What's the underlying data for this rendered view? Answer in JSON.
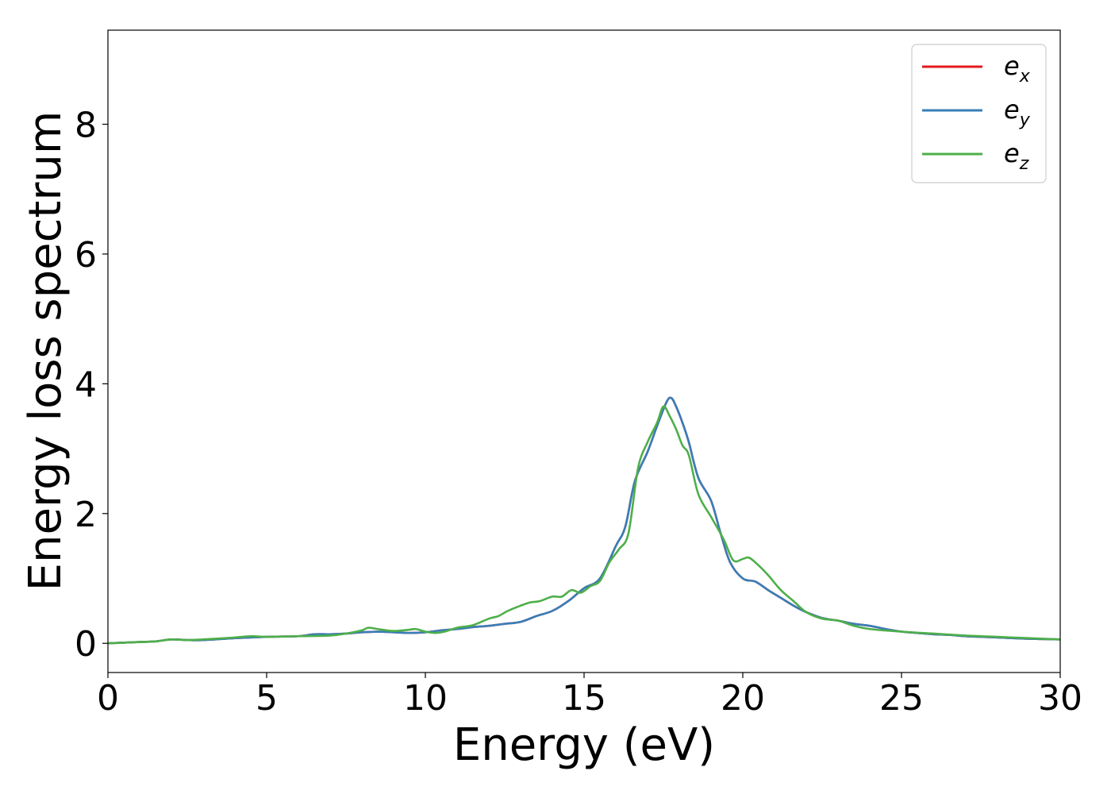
{
  "chart_data": {
    "type": "line",
    "title": "",
    "xlabel": "Energy (eV)",
    "ylabel": "Energy loss spectrum",
    "xlim": [
      0,
      30
    ],
    "ylim": [
      -0.45,
      9.45
    ],
    "xticks": [
      0,
      5,
      10,
      15,
      20,
      25,
      30
    ],
    "yticks": [
      0,
      2,
      4,
      6,
      8
    ],
    "grid": false,
    "legend_position": "top-right",
    "series": [
      {
        "name": "e",
        "subscript": "x",
        "color": "#e41a1c",
        "x": [
          0,
          1,
          1.5,
          2,
          2.5,
          3,
          4,
          5,
          6,
          6.5,
          7,
          7.5,
          8,
          8.5,
          9,
          9.5,
          10,
          10.5,
          11,
          11.5,
          12,
          12.5,
          13,
          13.5,
          14,
          14.5,
          15,
          15.5,
          16,
          16.3,
          16.6,
          17,
          17.3,
          17.6,
          17.75,
          17.9,
          18.1,
          18.3,
          18.6,
          19,
          19.3,
          19.6,
          20,
          20.4,
          20.8,
          21.2,
          21.6,
          22,
          22.5,
          23,
          23.5,
          24,
          24.5,
          25,
          25.5,
          26,
          26.5,
          27,
          28,
          29,
          30
        ],
        "y": [
          0,
          0.02,
          0.03,
          0.06,
          0.05,
          0.05,
          0.08,
          0.1,
          0.11,
          0.14,
          0.14,
          0.15,
          0.17,
          0.18,
          0.17,
          0.16,
          0.17,
          0.2,
          0.22,
          0.25,
          0.27,
          0.3,
          0.33,
          0.42,
          0.5,
          0.65,
          0.85,
          1.0,
          1.5,
          1.8,
          2.5,
          2.95,
          3.35,
          3.72,
          3.78,
          3.65,
          3.4,
          3.1,
          2.55,
          2.2,
          1.7,
          1.25,
          1.0,
          0.95,
          0.82,
          0.7,
          0.58,
          0.48,
          0.39,
          0.35,
          0.3,
          0.27,
          0.22,
          0.18,
          0.16,
          0.14,
          0.13,
          0.11,
          0.09,
          0.07,
          0.06
        ]
      },
      {
        "name": "e",
        "subscript": "y",
        "color": "#377eb8",
        "x": [
          0,
          1,
          1.5,
          2,
          2.5,
          3,
          4,
          5,
          6,
          6.5,
          7,
          7.5,
          8,
          8.5,
          9,
          9.5,
          10,
          10.5,
          11,
          11.5,
          12,
          12.5,
          13,
          13.5,
          14,
          14.5,
          15,
          15.5,
          16,
          16.3,
          16.6,
          17,
          17.3,
          17.6,
          17.75,
          17.9,
          18.1,
          18.3,
          18.6,
          19,
          19.3,
          19.6,
          20,
          20.4,
          20.8,
          21.2,
          21.6,
          22,
          22.5,
          23,
          23.5,
          24,
          24.5,
          25,
          25.5,
          26,
          26.5,
          27,
          28,
          29,
          30
        ],
        "y": [
          0,
          0.02,
          0.03,
          0.06,
          0.05,
          0.05,
          0.08,
          0.1,
          0.11,
          0.14,
          0.14,
          0.15,
          0.17,
          0.18,
          0.17,
          0.16,
          0.17,
          0.2,
          0.22,
          0.25,
          0.27,
          0.3,
          0.33,
          0.42,
          0.5,
          0.65,
          0.85,
          1.0,
          1.5,
          1.8,
          2.5,
          2.95,
          3.35,
          3.72,
          3.78,
          3.65,
          3.4,
          3.1,
          2.55,
          2.2,
          1.7,
          1.25,
          1.0,
          0.95,
          0.82,
          0.7,
          0.58,
          0.48,
          0.39,
          0.35,
          0.3,
          0.27,
          0.22,
          0.18,
          0.16,
          0.14,
          0.13,
          0.11,
          0.09,
          0.07,
          0.06
        ]
      },
      {
        "name": "e",
        "subscript": "z",
        "color": "#4daf4a",
        "x": [
          0,
          1,
          1.5,
          2,
          2.5,
          3,
          4,
          4.5,
          5,
          6,
          7,
          7.5,
          8,
          8.2,
          8.5,
          9,
          9.5,
          9.7,
          10,
          10.3,
          10.6,
          11,
          11.5,
          12,
          12.3,
          12.6,
          13,
          13.3,
          13.6,
          14,
          14.3,
          14.6,
          14.9,
          15.2,
          15.5,
          15.8,
          16.1,
          16.4,
          16.7,
          17,
          17.3,
          17.5,
          17.7,
          17.9,
          18.1,
          18.3,
          18.6,
          19,
          19.4,
          19.7,
          20,
          20.2,
          20.5,
          20.8,
          21.2,
          21.6,
          22,
          22.5,
          23,
          23.5,
          24,
          25,
          26,
          27,
          28,
          29,
          30
        ],
        "y": [
          0,
          0.02,
          0.03,
          0.06,
          0.05,
          0.06,
          0.09,
          0.11,
          0.1,
          0.11,
          0.12,
          0.15,
          0.2,
          0.24,
          0.22,
          0.19,
          0.21,
          0.22,
          0.18,
          0.16,
          0.18,
          0.24,
          0.28,
          0.38,
          0.42,
          0.5,
          0.58,
          0.63,
          0.65,
          0.72,
          0.72,
          0.82,
          0.78,
          0.88,
          0.96,
          1.25,
          1.45,
          1.7,
          2.7,
          3.1,
          3.4,
          3.65,
          3.5,
          3.3,
          3.05,
          2.9,
          2.3,
          1.95,
          1.6,
          1.28,
          1.3,
          1.32,
          1.2,
          1.05,
          0.82,
          0.65,
          0.48,
          0.38,
          0.35,
          0.27,
          0.22,
          0.18,
          0.15,
          0.12,
          0.1,
          0.08,
          0.06
        ]
      }
    ]
  }
}
